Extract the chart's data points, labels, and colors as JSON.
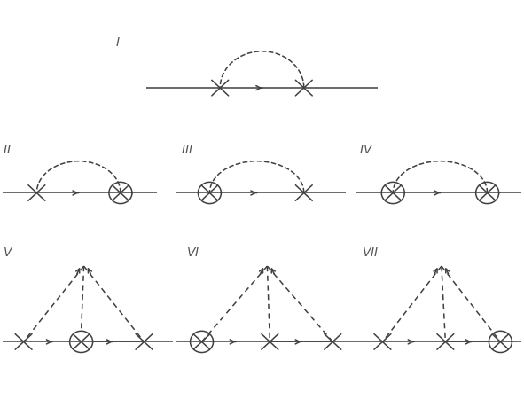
{
  "background_color": "#ffffff",
  "line_color": "#404040",
  "fig_width": 5.91,
  "fig_height": 4.68,
  "dpi": 100,
  "xlim": [
    0,
    10
  ],
  "ylim": [
    0,
    8.5
  ]
}
